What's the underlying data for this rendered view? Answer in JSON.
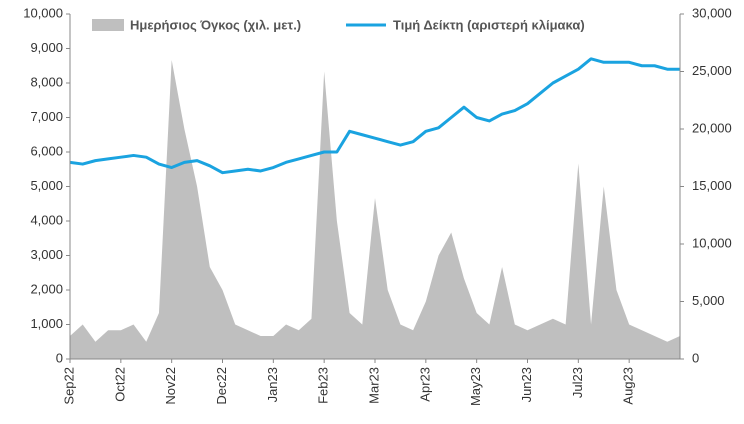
{
  "chart_data": {
    "type": "line-area",
    "categories": [
      "Sep22",
      null,
      null,
      null,
      "Oct22",
      null,
      null,
      null,
      "Nov22",
      null,
      null,
      null,
      "Dec22",
      null,
      null,
      null,
      "Jan23",
      null,
      null,
      null,
      "Feb23",
      null,
      null,
      null,
      "Mar23",
      null,
      null,
      null,
      "Apr23",
      null,
      null,
      null,
      "May23",
      null,
      null,
      null,
      "Jun23",
      null,
      null,
      null,
      "Jul23",
      null,
      null,
      null,
      "Aug23",
      null,
      null,
      null,
      null
    ],
    "series": [
      {
        "name": "Ημερήσιος Όγκος (χιλ. μετ.)",
        "color": "#bfbfbf",
        "kind": "area",
        "axis": "y2",
        "values": [
          2000,
          3000,
          1500,
          2500,
          2500,
          3000,
          1500,
          4000,
          26000,
          20000,
          15000,
          8000,
          6000,
          3000,
          2500,
          2000,
          2000,
          3000,
          2500,
          3500,
          25000,
          12000,
          4000,
          3000,
          14000,
          6000,
          3000,
          2500,
          5000,
          9000,
          11000,
          7000,
          4000,
          3000,
          8000,
          3000,
          2500,
          3000,
          3500,
          3000,
          17000,
          3000,
          15000,
          6000,
          3000,
          2500,
          2000,
          1500,
          2000
        ]
      },
      {
        "name": "Τιμή Δείκτη (αριστερή κλίμακα)",
        "color": "#1aa3e0",
        "kind": "line",
        "values": [
          5700,
          5650,
          5750,
          5800,
          5850,
          5900,
          5850,
          5650,
          5550,
          5700,
          5750,
          5600,
          5400,
          5450,
          5500,
          5450,
          5550,
          5700,
          5800,
          5900,
          6000,
          6000,
          6600,
          6500,
          6400,
          6300,
          6200,
          6300,
          6600,
          6700,
          7000,
          7300,
          7000,
          6900,
          7100,
          7200,
          7400,
          7700,
          8000,
          8200,
          8400,
          8700,
          8600,
          8600,
          8600,
          8500,
          8500,
          8400,
          8400
        ]
      }
    ],
    "ylim": [
      0,
      10000
    ],
    "yticks": [
      0,
      {
        "value": 1000,
        "label": "1,000"
      },
      {
        "value": 2000,
        "label": "2,000"
      },
      {
        "value": 3000,
        "label": "3,000"
      },
      {
        "value": 4000,
        "label": "4,000"
      },
      {
        "value": 5000,
        "label": "5,000"
      },
      {
        "value": 6000,
        "label": "6,000"
      },
      {
        "value": 7000,
        "label": "7,000"
      },
      {
        "value": 8000,
        "label": "8,000"
      },
      {
        "value": 9000,
        "label": "9,000"
      },
      {
        "value": 10000,
        "label": "10,000"
      }
    ],
    "y2lim": [
      0,
      30000
    ],
    "y2ticks": [
      0,
      {
        "value": 5000,
        "label": "5,000"
      },
      {
        "value": 10000,
        "label": "10,000"
      },
      {
        "value": 15000,
        "label": "15,000"
      },
      {
        "value": 20000,
        "label": "20,000"
      },
      {
        "value": 25000,
        "label": "25,000"
      },
      {
        "value": 30000,
        "label": "30,000"
      }
    ]
  }
}
